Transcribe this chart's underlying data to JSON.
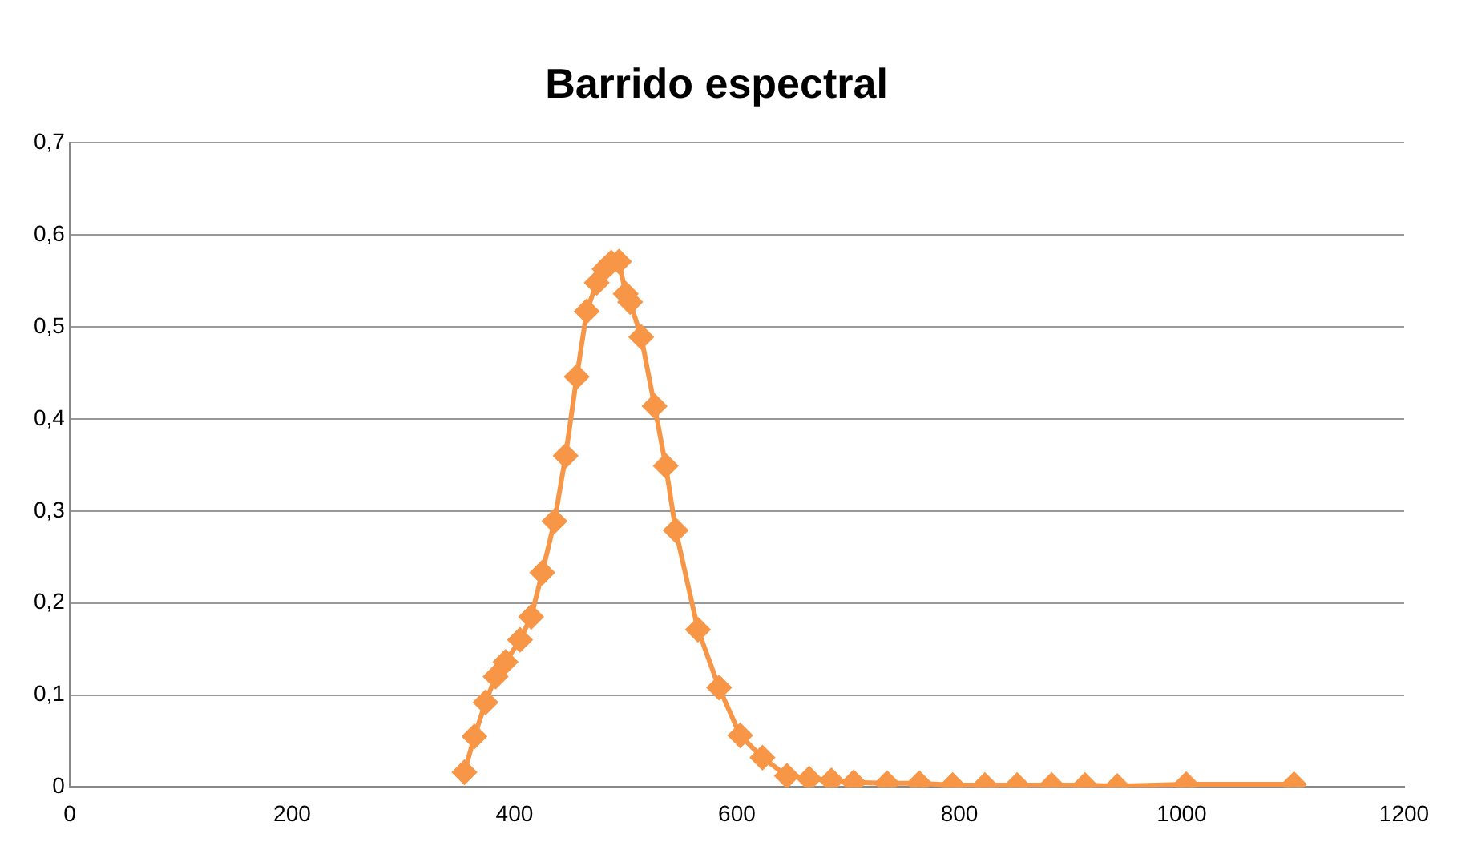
{
  "chart_data": {
    "type": "line",
    "title": "Barrido espectral",
    "marker": "diamond",
    "grid": "y",
    "line_style": "solid",
    "xlim": [
      0,
      1200
    ],
    "xticks": [
      0,
      200,
      400,
      600,
      800,
      1000,
      1200
    ],
    "ylim": [
      0,
      0.7
    ],
    "yticks": [
      0,
      {
        "value": 0.1,
        "label": "0,1"
      },
      {
        "value": 0.2,
        "label": "0,2"
      },
      {
        "value": 0.3,
        "label": "0,3"
      },
      {
        "value": 0.4,
        "label": "0,4"
      },
      {
        "value": 0.5,
        "label": "0,5"
      },
      {
        "value": 0.6,
        "label": "0,6"
      },
      {
        "value": 0.7,
        "label": "0,7"
      }
    ],
    "series": [
      {
        "color": "#f79646",
        "x": [
          355,
          364,
          374,
          383,
          392,
          405,
          415,
          425,
          436,
          446,
          456,
          465,
          474,
          481,
          487,
          494,
          500,
          504,
          514,
          526,
          536,
          545,
          565,
          584,
          603,
          623,
          645,
          665,
          685,
          705,
          735,
          764,
          794,
          823,
          852,
          883,
          913,
          942,
          1004,
          1101
        ],
        "values": [
          0.016,
          0.055,
          0.092,
          0.12,
          0.136,
          0.16,
          0.185,
          0.233,
          0.289,
          0.36,
          0.446,
          0.517,
          0.548,
          0.563,
          0.57,
          0.571,
          0.536,
          0.527,
          0.489,
          0.414,
          0.349,
          0.279,
          0.171,
          0.108,
          0.056,
          0.032,
          0.012,
          0.009,
          0.007,
          0.005,
          0.004,
          0.004,
          0.002,
          0.002,
          0.002,
          0.002,
          0.002,
          0.001,
          0.003,
          0.003
        ]
      }
    ]
  }
}
